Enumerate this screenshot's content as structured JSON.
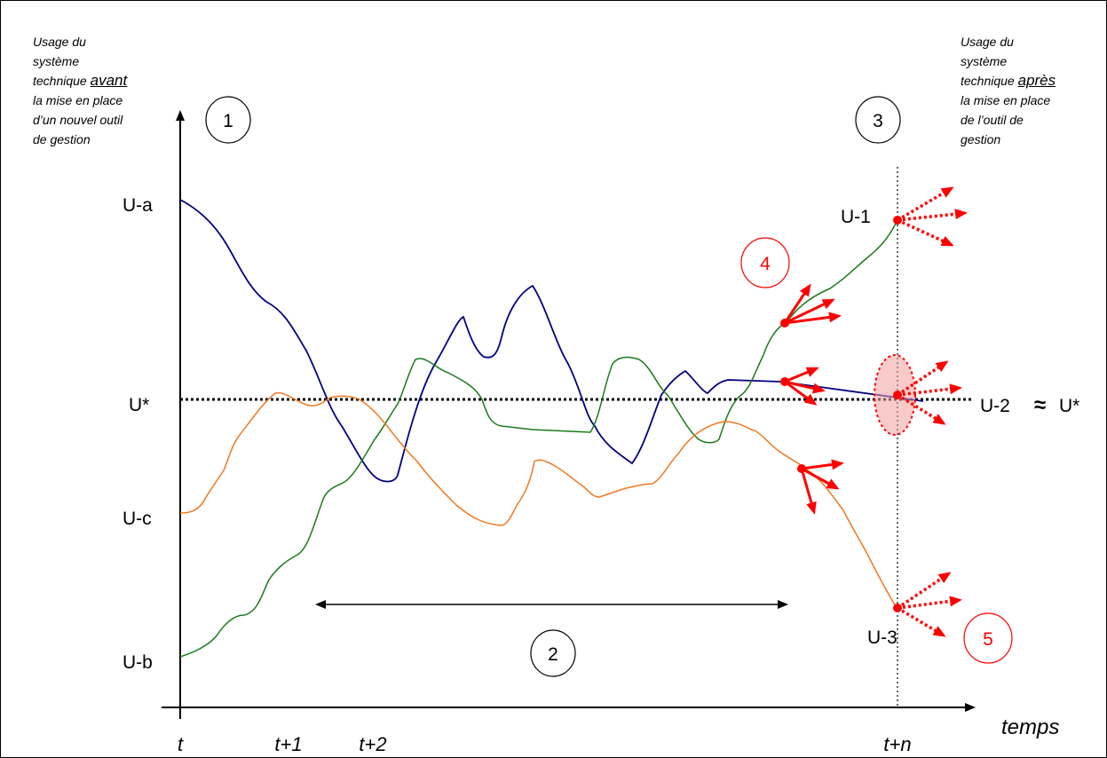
{
  "notes": {
    "left": {
      "l1": "Usage du",
      "l2": "système",
      "l3a": "technique ",
      "l3b": "avant",
      "l4": "la mise en place",
      "l5": "d’un nouvel outil",
      "l6": "de gestion"
    },
    "right": {
      "l1": "Usage du",
      "l2": "système",
      "l3a": "technique ",
      "l3b": "après",
      "l4": "la mise en place",
      "l5": "de l’outil de",
      "l6": "gestion"
    }
  },
  "y_labels": {
    "ua": "U-a",
    "ustar": "U*",
    "uc": "U-c",
    "ub": "U-b"
  },
  "x_labels": {
    "t": "t",
    "t1": "t+1",
    "t2": "t+2",
    "tn": "t+n",
    "axis": "temps"
  },
  "end_labels": {
    "u1": "U-1",
    "u2": "U-2",
    "approx": "≈",
    "u2star": "U*",
    "u3": "U-3"
  },
  "steps": {
    "s1": "1",
    "s2": "2",
    "s3": "3",
    "s4": "4",
    "s5": "5"
  },
  "colors": {
    "blue": "#000080",
    "green": "#1a7a1a",
    "orange": "#f07820",
    "red": "#ff0000",
    "ink": "#000000"
  }
}
